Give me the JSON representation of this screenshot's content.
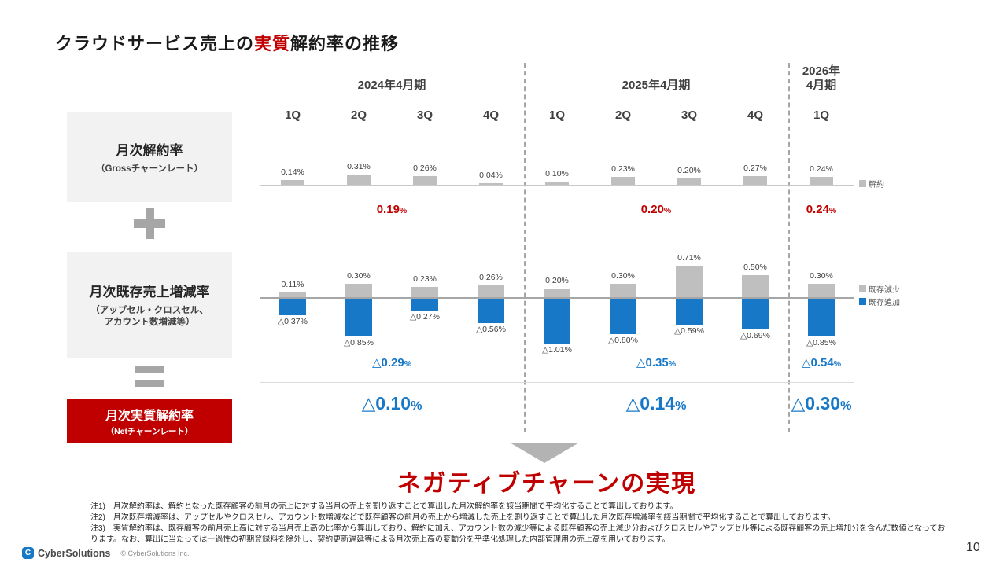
{
  "slide": {
    "title": {
      "pre": "クラウドサービス売上の",
      "accent": "実質",
      "post": "解約率の推移"
    },
    "message": "ネガティブチャーンの実現",
    "page_number": "10"
  },
  "formula": {
    "gross_box": {
      "title": "月次解約率",
      "subtitle": "（Grossチャーンレート）"
    },
    "delta_box": {
      "title": "月次既存売上増減率",
      "subtitle_line1": "（アップセル・クロスセル、",
      "subtitle_line2": "アカウント数増減等）"
    },
    "net_box": {
      "title": "月次実質解約率",
      "subtitle": "（Netチャーンレート）"
    },
    "icons": {
      "plus": "plus-icon",
      "equals": "equals-icon",
      "down_arrow": "down-arrow-icon"
    }
  },
  "chart_data": {
    "type": "bar",
    "unit": "%",
    "periods": [
      {
        "label": "2024年4月期",
        "quarters": 4
      },
      {
        "label": "2025年4月期",
        "quarters": 4
      },
      {
        "label": "2026年\n4月期",
        "quarters": 1
      }
    ],
    "categories": [
      "1Q",
      "2Q",
      "3Q",
      "4Q",
      "1Q",
      "2Q",
      "3Q",
      "4Q",
      "1Q"
    ],
    "series": [
      {
        "name": "解約",
        "axis": "gross",
        "color": "#bfbfbf",
        "values": [
          0.14,
          0.31,
          0.26,
          0.04,
          0.1,
          0.23,
          0.2,
          0.27,
          0.24
        ],
        "labels": [
          "0.14%",
          "0.31%",
          "0.26%",
          "0.04%",
          "0.10%",
          "0.23%",
          "0.20%",
          "0.27%",
          "0.24%"
        ]
      },
      {
        "name": "既存減少",
        "axis": "delta",
        "color": "#bfbfbf",
        "values": [
          0.11,
          0.3,
          0.23,
          0.26,
          0.2,
          0.3,
          0.71,
          0.5,
          0.3
        ],
        "labels": [
          "0.11%",
          "0.30%",
          "0.23%",
          "0.26%",
          "0.20%",
          "0.30%",
          "0.71%",
          "0.50%",
          "0.30%"
        ]
      },
      {
        "name": "既存追加",
        "axis": "delta",
        "color": "#1878c8",
        "values": [
          -0.37,
          -0.85,
          -0.27,
          -0.56,
          -1.01,
          -0.8,
          -0.59,
          -0.69,
          -0.85
        ],
        "labels": [
          "△0.37%",
          "△0.85%",
          "△0.27%",
          "△0.56%",
          "△1.01%",
          "△0.80%",
          "△0.59%",
          "△0.69%",
          "△0.85%"
        ]
      }
    ],
    "period_averages": {
      "gross": [
        "0.19%",
        "0.20%",
        "0.24%"
      ],
      "delta": [
        "△0.29%",
        "△0.35%",
        "△0.54%"
      ],
      "net": [
        "△0.10%",
        "△0.14%",
        "△0.30%"
      ]
    }
  },
  "notes": [
    "注1)　月次解約率は、解約となった既存顧客の前月の売上に対する当月の売上を割り返すことで算出した月次解約率を該当期間で平均化することで算出しております。",
    "注2)　月次既存増減率は、アップセルやクロスセル、アカウント数増減などで既存顧客の前月の売上から増減した売上を割り返すことで算出した月次既存増減率を該当期間で平均化することで算出しております。",
    "注3)　実質解約率は、既存顧客の前月売上高に対する当月売上高の比率から算出しており、解約に加え、アカウント数の減少等による既存顧客の売上減少分およびクロスセルやアップセル等による既存顧客の売上増加分を含んだ数値となっております。なお、算出に当たっては一過性の初期登録料を除外し、契約更新遅延等による月次売上高の変動分を平準化処理した内部管理用の売上高を用いております。"
  ],
  "footer": {
    "logo_text": "CyberSolutions",
    "copyright": "© CyberSolutions Inc."
  },
  "colors": {
    "accent_red": "#c00000",
    "accent_blue": "#1878c8",
    "bar_gray": "#bfbfbf",
    "box_gray": "#f2f2f2",
    "operator_gray": "#a6a6a6"
  }
}
